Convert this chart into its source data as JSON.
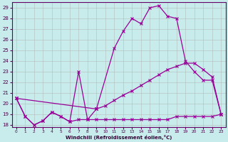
{
  "xlabel": "Windchill (Refroidissement éolien,°C)",
  "xlim": [
    -0.5,
    23.5
  ],
  "ylim": [
    17.8,
    29.5
  ],
  "yticks": [
    18,
    19,
    20,
    21,
    22,
    23,
    24,
    25,
    26,
    27,
    28,
    29
  ],
  "xticks": [
    0,
    1,
    2,
    3,
    4,
    5,
    6,
    7,
    8,
    9,
    10,
    11,
    12,
    13,
    14,
    15,
    16,
    17,
    18,
    19,
    20,
    21,
    22,
    23
  ],
  "background_color": "#c8ecec",
  "grid_color": "#b0b0b0",
  "line_color": "#990099",
  "series": {
    "line1": {
      "x": [
        0,
        1,
        2,
        3,
        4,
        5,
        6,
        7,
        8,
        9
      ],
      "y": [
        20.5,
        18.8,
        18.0,
        18.4,
        19.2,
        18.8,
        18.3,
        23.0,
        18.5,
        19.5
      ]
    },
    "line2": {
      "x": [
        9,
        11,
        12,
        13,
        14,
        15,
        16,
        17,
        18,
        19,
        20,
        21,
        22,
        23
      ],
      "y": [
        19.5,
        25.2,
        26.8,
        28.0,
        27.5,
        29.0,
        29.2,
        28.2,
        28.0,
        24.0,
        23.0,
        22.2,
        22.2,
        19.0
      ]
    },
    "line3": {
      "x": [
        0,
        1,
        2,
        3,
        4,
        5,
        6,
        7,
        8,
        9,
        10,
        11,
        12,
        13,
        14,
        15,
        16,
        17,
        18,
        19,
        20,
        21,
        22,
        23
      ],
      "y": [
        20.5,
        18.8,
        18.0,
        18.4,
        19.2,
        18.8,
        18.3,
        18.5,
        18.5,
        18.5,
        18.5,
        18.5,
        18.5,
        18.5,
        18.5,
        18.5,
        18.5,
        18.5,
        18.8,
        18.8,
        18.8,
        18.8,
        18.8,
        19.0
      ]
    },
    "line4": {
      "x": [
        0,
        9,
        10,
        11,
        12,
        13,
        14,
        15,
        16,
        17,
        18,
        19,
        20,
        21,
        22,
        23
      ],
      "y": [
        20.5,
        19.5,
        19.8,
        20.3,
        20.8,
        21.2,
        21.7,
        22.2,
        22.7,
        23.2,
        23.5,
        23.8,
        23.8,
        23.2,
        22.5,
        19.0
      ]
    }
  }
}
